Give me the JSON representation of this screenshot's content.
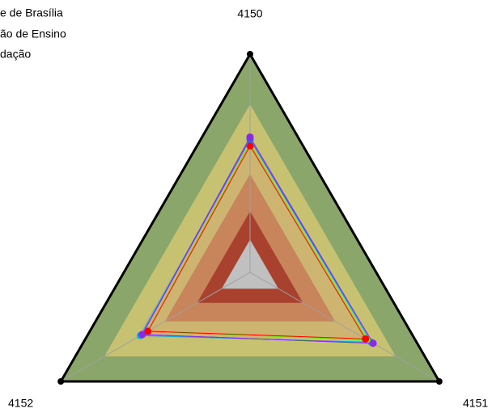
{
  "chart_data": {
    "type": "radar",
    "axes": [
      "4150",
      "4151",
      "4152"
    ],
    "legend": [
      "e de Brasília",
      "ão de Ensino",
      "dação"
    ],
    "rlim": [
      0,
      100
    ],
    "bands": [
      {
        "value": 100,
        "color": "#8aa66a"
      },
      {
        "value": 77,
        "color": "#c6c272"
      },
      {
        "value": 60,
        "color": "#cdb470"
      },
      {
        "value": 45,
        "color": "#c8845a"
      },
      {
        "value": 28,
        "color": "#a8412e"
      },
      {
        "value": 15,
        "color": "#c0c0c0"
      }
    ],
    "series": [
      {
        "color": "#00b0f0",
        "values": [
          61,
          64,
          58
        ]
      },
      {
        "color": "#66ee00",
        "values": [
          59,
          62,
          54
        ]
      },
      {
        "color": "#ff0000",
        "values": [
          58,
          61,
          54
        ]
      },
      {
        "color": "#3060ff",
        "values": [
          61,
          65,
          57
        ]
      },
      {
        "color": "#8a2be2",
        "values": [
          62,
          65,
          57
        ]
      }
    ]
  }
}
